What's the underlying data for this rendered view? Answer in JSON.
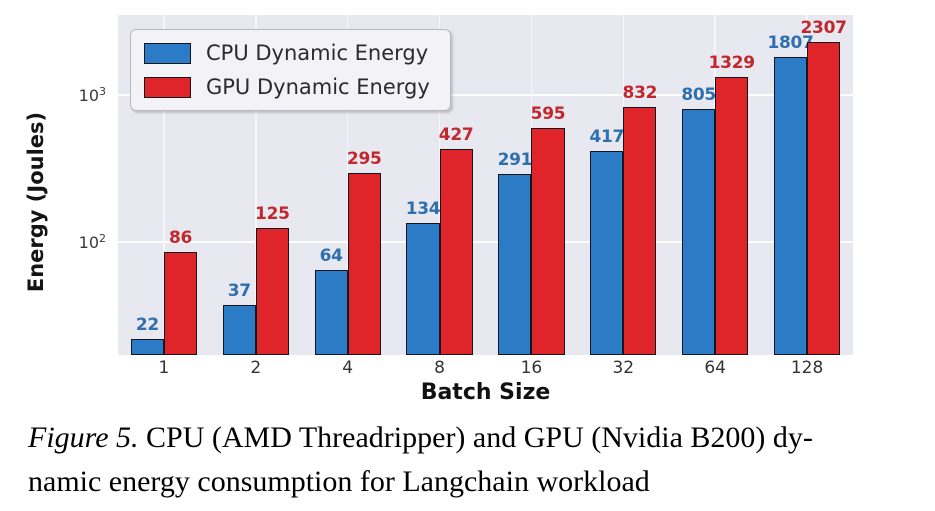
{
  "chart_data": {
    "type": "bar",
    "categories": [
      "1",
      "2",
      "4",
      "8",
      "16",
      "32",
      "64",
      "128"
    ],
    "series": [
      {
        "name": "CPU Dynamic Energy",
        "color": "#2b7bc7",
        "label_color": "#2e6fae",
        "values": [
          22,
          37,
          64,
          134,
          291,
          417,
          805,
          1807
        ]
      },
      {
        "name": "GPU Dynamic Energy",
        "color": "#e0252a",
        "label_color": "#c1272d",
        "values": [
          86,
          125,
          295,
          427,
          595,
          832,
          1329,
          2307
        ]
      }
    ],
    "title": "",
    "xlabel": "Batch Size",
    "ylabel": "Energy (Joules)",
    "yscale": "log",
    "ylim": [
      17,
      3500
    ],
    "yticks": [
      {
        "base": "10",
        "exp": "3",
        "value": 1000
      },
      {
        "base": "10",
        "exp": "2",
        "value": 100
      }
    ],
    "grid": true,
    "legend_position": "upper left",
    "bar_labels": true,
    "plot_background": "#e8e8f0"
  },
  "caption": {
    "figure_label": "Figure 5.",
    "line1_rest": " CPU (AMD Threadripper) and GPU (Nvidia B200) dy-",
    "line2": "namic energy consumption for Langchain workload"
  }
}
